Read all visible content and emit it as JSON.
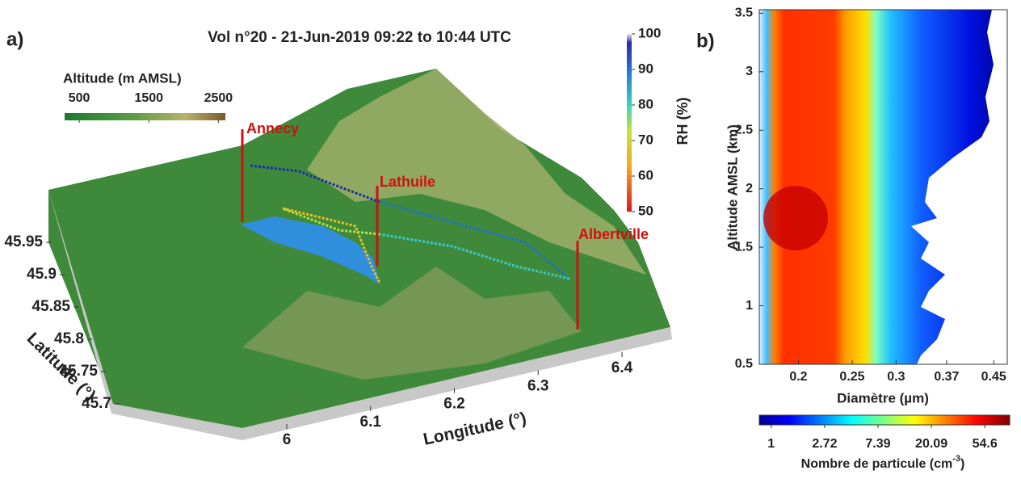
{
  "panel_a": {
    "label": "a)",
    "title": "Vol n°20 - 21-Jun-2019 09:22 to 10:44 UTC",
    "altitude_colorbar": {
      "title": "Altitude (m AMSL)",
      "lim": [
        290,
        2600
      ],
      "ticks": [
        500,
        1500,
        2500
      ]
    },
    "rh_colorbar": {
      "title": "RH (%)",
      "lim": [
        50,
        100
      ],
      "ticks": [
        50,
        60,
        70,
        80,
        90,
        100
      ]
    },
    "places": [
      "Annecy",
      "Lathuile",
      "Albertville"
    ],
    "latitude": {
      "label": "Latitude (°)",
      "lim": [
        45.7,
        45.95
      ],
      "ticks": [
        45.7,
        45.75,
        45.8,
        45.85,
        45.9,
        45.95
      ]
    },
    "longitude": {
      "label": "Longitude (°)",
      "lim": [
        6,
        6.4
      ],
      "ticks": [
        6,
        6.1,
        6.2,
        6.3,
        6.4
      ]
    }
  },
  "panel_b": {
    "label": "b)",
    "xlabel": "Diamètre (µm)",
    "ylabel": "Altitude AMSL (km)",
    "xlim": [
      0.17,
      0.476
    ],
    "xlog": true,
    "xticks": [
      0.2,
      0.25,
      0.3,
      0.37,
      0.45
    ],
    "ylim": [
      0.5,
      3.53
    ],
    "yticks": [
      0.5,
      1,
      1.5,
      2,
      2.5,
      3,
      3.5
    ],
    "colorbar": {
      "title": "Nombre de particule (cm",
      "title_exp": "-3",
      "title_end": ")",
      "lim": [
        0.8,
        87
      ],
      "log": true,
      "ticks": [
        1,
        2.72,
        7.39,
        20.09,
        54.6
      ]
    }
  }
}
